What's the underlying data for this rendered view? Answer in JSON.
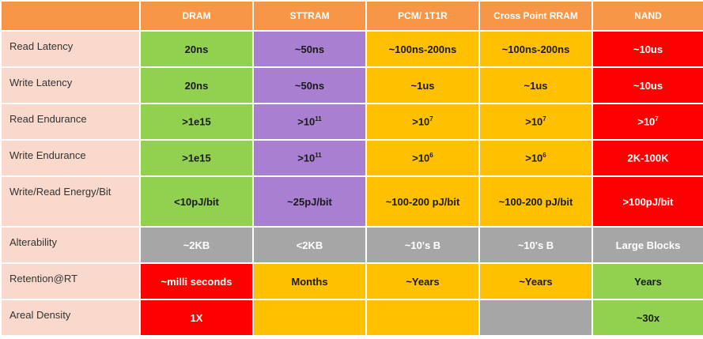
{
  "columns": [
    "DRAM",
    "STTRAM",
    "PCM/ 1T1R",
    "Cross Point RRAM",
    "NAND"
  ],
  "rows": [
    {
      "label": "Read Latency",
      "cells": [
        "20ns",
        "~50ns",
        "~100ns-200ns",
        "~100ns-200ns",
        "~10us"
      ]
    },
    {
      "label": "Write Latency",
      "cells": [
        "20ns",
        "~50ns",
        "~1us",
        "~1us",
        "~10us"
      ]
    },
    {
      "label": "Read Endurance",
      "cells": [
        ">1e15",
        ">10",
        ">10",
        ">10",
        ">10"
      ],
      "sup": [
        "",
        "11",
        "7",
        "7",
        "7"
      ]
    },
    {
      "label": "Write Endurance",
      "cells": [
        ">1e15",
        ">10",
        ">10",
        ">10",
        "2K-100K"
      ],
      "sup": [
        "",
        "11",
        "6",
        "6",
        ""
      ]
    },
    {
      "label": "Write/Read Energy/Bit",
      "cells": [
        "<10pJ/bit",
        "~25pJ/bit",
        "~100-200 pJ/bit",
        "~100-200 pJ/bit",
        ">100pJ/bit"
      ]
    },
    {
      "label": "Alterability",
      "cells": [
        "~2KB",
        "<2KB",
        "~10's B",
        "~10's B",
        "Large Blocks"
      ]
    },
    {
      "label": "Retention@RT",
      "cells": [
        "~milli seconds",
        "Months",
        "~Years",
        "~Years",
        "Years"
      ]
    },
    {
      "label": "Areal Density",
      "cells": [
        "1X",
        "",
        "",
        "",
        "~30x"
      ]
    }
  ],
  "colors": {
    "header": "#f79646",
    "label_bg": "#f8d9cc",
    "green": "#92d050",
    "purple": "#a97fd1",
    "orange": "#ffc000",
    "red": "#ff0000",
    "gray": "#a6a6a6"
  }
}
